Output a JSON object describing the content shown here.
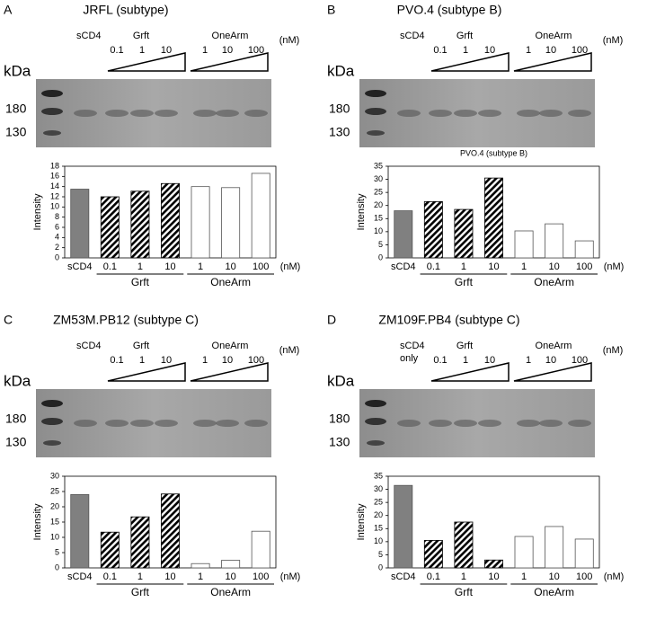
{
  "panels": [
    {
      "letter": "A",
      "title": "JRFL (subtype)",
      "sample_label": [
        "sCD4"
      ],
      "grft": "Grft",
      "onearm": "OneArm",
      "concentrations": [
        "0.1",
        "1",
        "10",
        "1",
        "10",
        "100"
      ],
      "unit": "(nM)",
      "kda": "kDa",
      "markers": [
        "180",
        "130"
      ]
    },
    {
      "letter": "B",
      "title": "PVO.4 (subtype B)",
      "sample_label": [
        "sCD4"
      ],
      "grft": "Grft",
      "onearm": "OneArm",
      "concentrations": [
        "0.1",
        "1",
        "10",
        "1",
        "10",
        "100"
      ],
      "unit": "(nM)",
      "kda": "kDa",
      "markers": [
        "180",
        "130"
      ]
    },
    {
      "letter": "C",
      "title": "ZM53M.PB12 (subtype C)",
      "sample_label": [
        "sCD4"
      ],
      "grft": "Grft",
      "onearm": "OneArm",
      "concentrations": [
        "0.1",
        "1",
        "10",
        "1",
        "10",
        "100"
      ],
      "unit": "(nM)",
      "kda": "kDa",
      "markers": [
        "180",
        "130"
      ]
    },
    {
      "letter": "D",
      "title": "ZM109F.PB4 (subtype C)",
      "sample_label": [
        "sCD4",
        "only"
      ],
      "grft": "Grft",
      "onearm": "OneArm",
      "concentrations": [
        "0.1",
        "1",
        "10",
        "1",
        "10",
        "100"
      ],
      "unit": "(nM)",
      "kda": "kDa",
      "markers": [
        "180",
        "130"
      ]
    }
  ],
  "chart_data": [
    {
      "type": "bar",
      "y_label": "Intensity",
      "categories": [
        "sCD4",
        "0.1",
        "1",
        "10",
        "1",
        "10",
        "100"
      ],
      "values": [
        13.5,
        12,
        13.1,
        14.6,
        14,
        13.8,
        16.6
      ],
      "fills": [
        "#808080",
        "hatch",
        "hatch",
        "hatch",
        "#ffffff",
        "#ffffff",
        "#ffffff"
      ],
      "ylim": [
        0,
        18
      ],
      "yticks": [
        0,
        2,
        4,
        6,
        8,
        10,
        12,
        14,
        16,
        18
      ],
      "unit": "(nM)",
      "groups": [
        "Grft",
        "OneArm"
      ]
    },
    {
      "type": "bar",
      "title": "PVO.4 (subtype B)",
      "y_label": "Intensity",
      "categories": [
        "sCD4",
        "0.1",
        "1",
        "10",
        "1",
        "10",
        "100"
      ],
      "values": [
        18,
        21.5,
        18.5,
        30.5,
        10.3,
        13,
        6.5
      ],
      "fills": [
        "#808080",
        "hatch",
        "hatch",
        "hatch",
        "#ffffff",
        "#ffffff",
        "#ffffff"
      ],
      "ylim": [
        0,
        35
      ],
      "yticks": [
        0,
        5,
        10,
        15,
        20,
        25,
        30,
        35
      ],
      "unit": "(nM)",
      "groups": [
        "Grft",
        "OneArm"
      ]
    },
    {
      "type": "bar",
      "y_label": "Intensity",
      "categories": [
        "sCD4",
        "0.1",
        "1",
        "10",
        "1",
        "10",
        "100"
      ],
      "values": [
        24,
        11.7,
        16.7,
        24.2,
        1.4,
        2.5,
        12
      ],
      "fills": [
        "#808080",
        "hatch",
        "hatch",
        "hatch",
        "#ffffff",
        "#ffffff",
        "#ffffff"
      ],
      "ylim": [
        0,
        30
      ],
      "yticks": [
        0,
        5,
        10,
        15,
        20,
        25,
        30
      ],
      "unit": "(nM)",
      "groups": [
        "Grft",
        "OneArm"
      ]
    },
    {
      "type": "bar",
      "y_label": "Intensity",
      "categories": [
        "sCD4",
        "0.1",
        "1",
        "10",
        "1",
        "10",
        "100"
      ],
      "values": [
        31.5,
        10.5,
        17.5,
        3,
        12,
        15.8,
        11
      ],
      "fills": [
        "#808080",
        "hatch",
        "hatch",
        "hatch",
        "#ffffff",
        "#ffffff",
        "#ffffff"
      ],
      "ylim": [
        0,
        35
      ],
      "yticks": [
        0,
        5,
        10,
        15,
        20,
        25,
        30,
        35
      ],
      "unit": "(nM)",
      "groups": [
        "Grft",
        "OneArm"
      ]
    }
  ]
}
